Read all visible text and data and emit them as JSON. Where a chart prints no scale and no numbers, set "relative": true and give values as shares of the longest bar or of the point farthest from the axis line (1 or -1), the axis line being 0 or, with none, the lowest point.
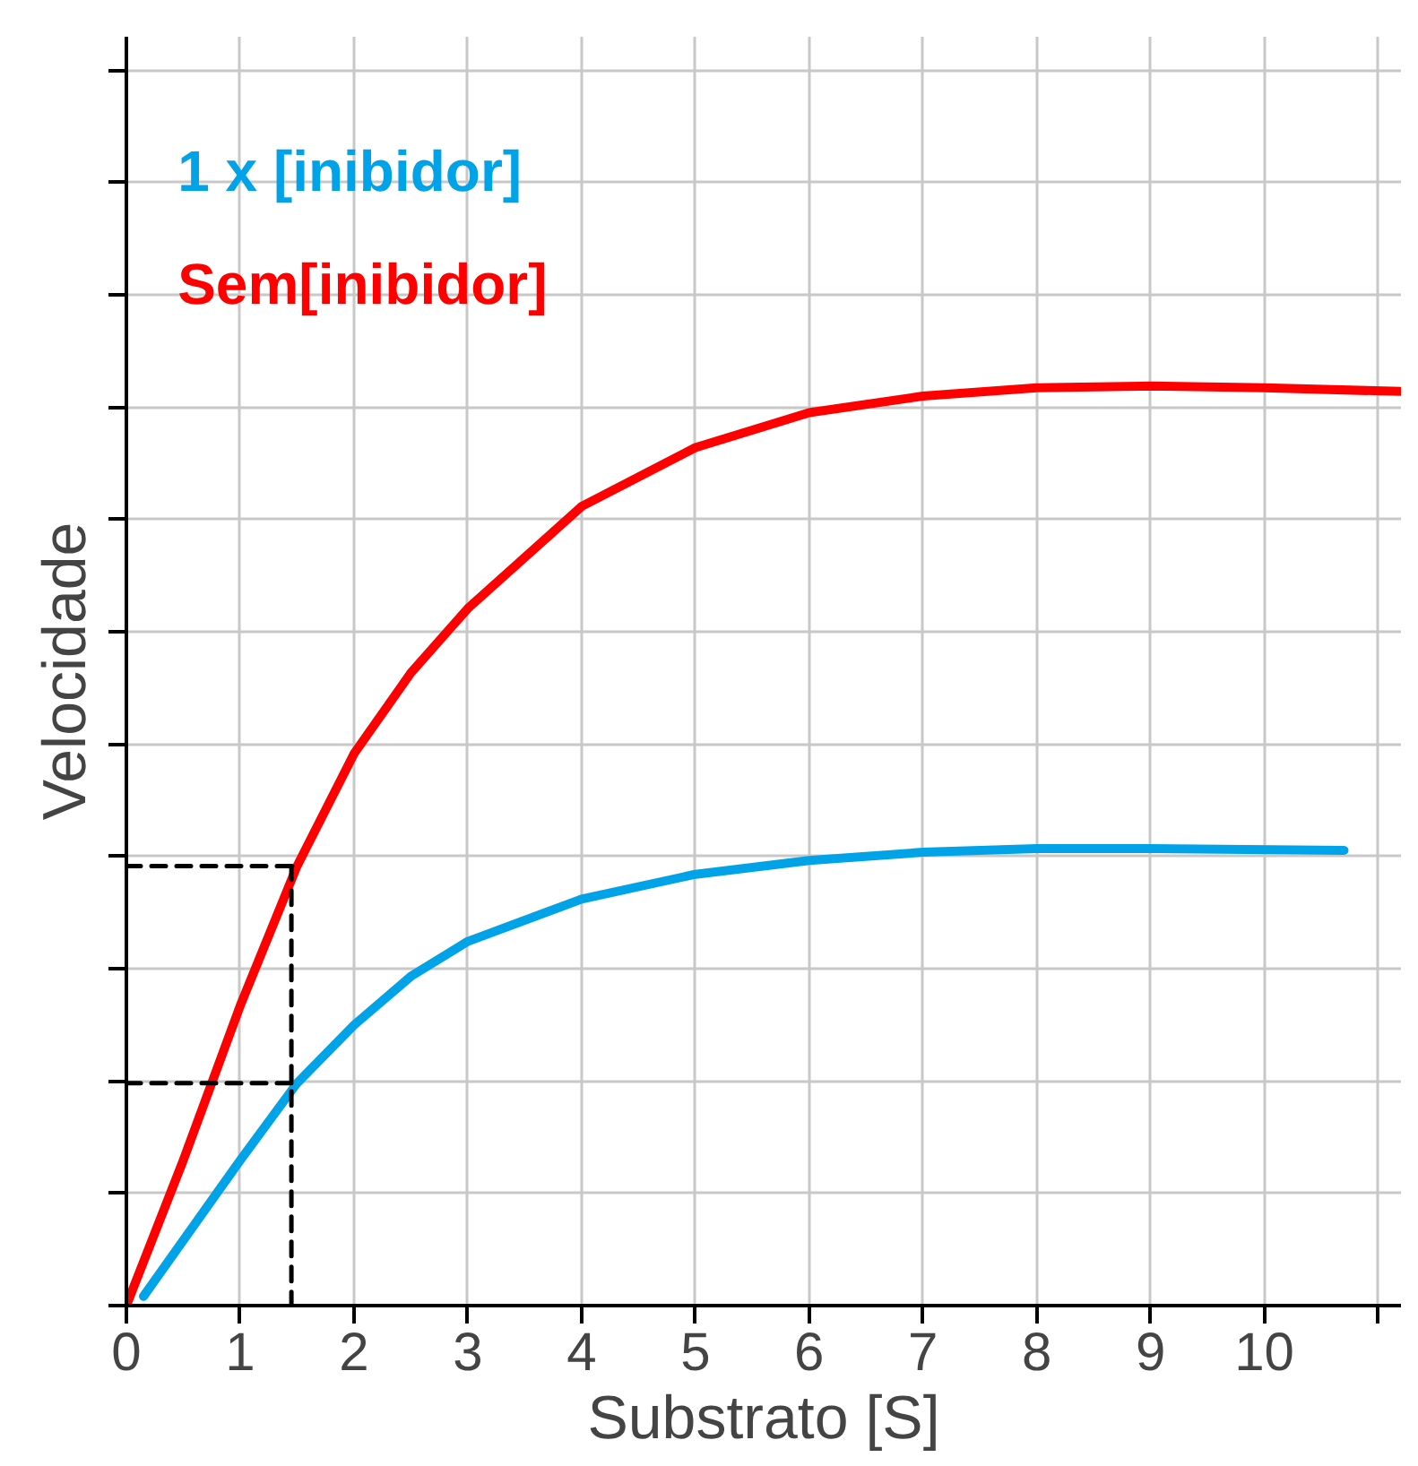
{
  "chart_data": {
    "type": "line",
    "xlabel": "Substrato [S]",
    "ylabel": "Velocidade",
    "relative": true,
    "xlim": [
      0,
      11.2
    ],
    "xticks": [
      0,
      1,
      2,
      3,
      4,
      5,
      6,
      7,
      8,
      9,
      10,
      {
        "value": 11,
        "label": null
      }
    ],
    "grid": true,
    "legend": "top left",
    "tick_labels": "x",
    "series": [
      {
        "name": "1 x [inibidor]",
        "color": "#00a2e8",
        "x": [
          0.15,
          1,
          1.5,
          2,
          2.5,
          3,
          4,
          5,
          6,
          7,
          8,
          9,
          10.7
        ],
        "values": [
          0.01,
          0.158,
          0.242,
          0.305,
          0.358,
          0.396,
          0.442,
          0.469,
          0.484,
          0.493,
          0.497,
          0.497,
          0.495
        ]
      },
      {
        "name": "Sem[inibidor]",
        "color": "#ff0000",
        "x": [
          0,
          0.5,
          1,
          1.5,
          2,
          2.5,
          3,
          4,
          5,
          6,
          7,
          8,
          9,
          10,
          11.2
        ],
        "values": [
          0,
          0.158,
          0.326,
          0.478,
          0.6,
          0.688,
          0.758,
          0.869,
          0.933,
          0.971,
          0.989,
          0.998,
          1,
          0.998,
          0.994
        ]
      },
      {
        "color": "#000000",
        "line_style": "dashed",
        "x": [
          0,
          1.5,
          1.45,
          1.45
        ],
        "values": [
          0.478,
          0.478,
          0.478,
          0
        ]
      },
      {
        "color": "#000000",
        "line_style": "dashed",
        "x": [
          0,
          1.45
        ],
        "values": [
          0.242,
          0.242
        ]
      }
    ]
  }
}
